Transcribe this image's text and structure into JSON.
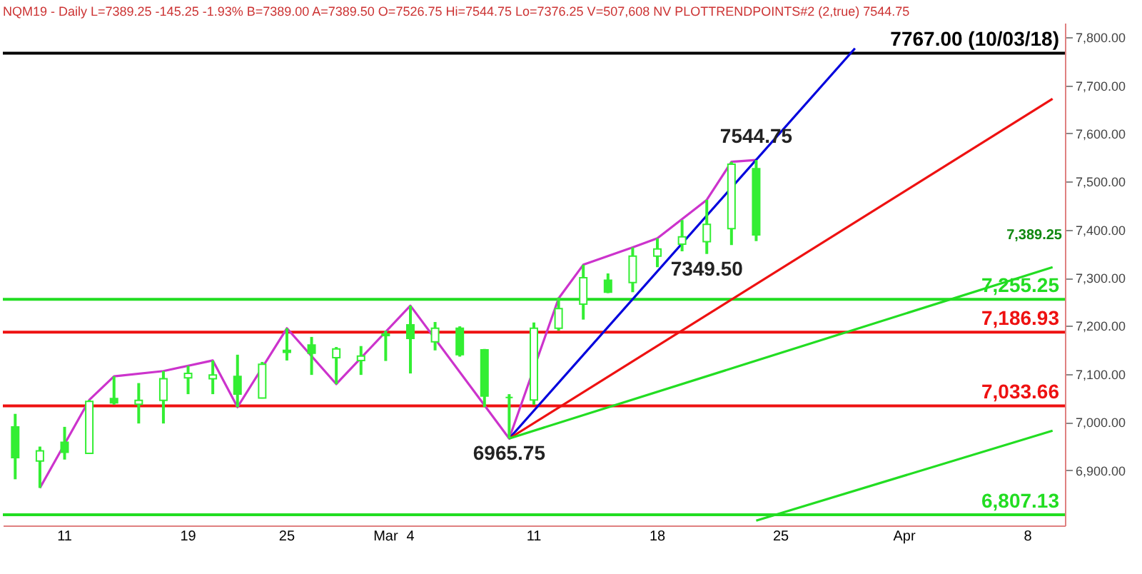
{
  "chart_data": {
    "type": "candlestick",
    "title": "NQM19 - Daily L=7389.25 -145.25 -1.93% B=7389.00 A=7389.50 O=7526.75 Hi=7544.75 Lo=7376.25 V=507,608 NV PLOTTRENDPOINTS#2 (2,true) 7544.75",
    "categories": [
      null,
      null,
      "11",
      null,
      null,
      null,
      null,
      "19",
      null,
      null,
      null,
      "25",
      null,
      null,
      null,
      "Mar",
      "4",
      null,
      null,
      null,
      null,
      "11",
      null,
      null,
      null,
      null,
      "18",
      null,
      null,
      null,
      null,
      "25",
      null,
      null,
      null,
      null,
      "Apr",
      null,
      null,
      null,
      null,
      "8",
      null
    ],
    "color": "#33ee33",
    "ohlc": [
      [
        6990,
        7017,
        6881,
        6926
      ],
      [
        6919,
        6949,
        6863,
        6940
      ],
      [
        6958,
        6990,
        6922,
        6937
      ],
      [
        6935,
        7046,
        6935,
        7043
      ],
      [
        7049,
        7095,
        7036,
        7040
      ],
      [
        7037,
        7081,
        6997,
        7045
      ],
      [
        7045,
        7106,
        6997,
        7090
      ],
      [
        7092,
        7117,
        7058,
        7101
      ],
      [
        7090,
        7128,
        7058,
        7098
      ],
      [
        7095,
        7140,
        7031,
        7058
      ],
      [
        7050,
        7125,
        7049,
        7120
      ],
      [
        7149,
        7195,
        7128,
        7145
      ],
      [
        7160,
        7177,
        7098,
        7143
      ],
      [
        7134,
        7156,
        7079,
        7152
      ],
      [
        7128,
        7158,
        7098,
        7137
      ],
      [
        7183,
        7190,
        7127,
        7180
      ],
      [
        7202,
        7242,
        7101,
        7174
      ],
      [
        7167,
        7208,
        7149,
        7195
      ],
      [
        7195,
        7199,
        7136,
        7140
      ],
      [
        7150,
        7152,
        7031,
        7054
      ],
      [
        7051,
        7058,
        6965.75,
        7051
      ],
      [
        7046,
        7207,
        7036,
        7195
      ],
      [
        7195,
        7259,
        7190,
        7236
      ],
      [
        7245,
        7327,
        7213,
        7300
      ],
      [
        7295,
        7309,
        7268,
        7270
      ],
      [
        7290,
        7363,
        7270,
        7345
      ],
      [
        7345,
        7382,
        7322,
        7360
      ],
      [
        7370,
        7420,
        7355,
        7385
      ],
      [
        7375,
        7462,
        7349.5,
        7411
      ],
      [
        7402,
        7541,
        7368,
        7536
      ],
      [
        7526.75,
        7544.75,
        7376.25,
        7389.25
      ],
      null,
      null,
      null,
      null,
      null,
      null,
      null,
      null,
      null,
      null,
      null,
      null
    ],
    "series": [
      {
        "type": "line",
        "color": "#cc33cc",
        "values": [
          null,
          6863,
          null,
          7046,
          7095,
          null,
          7106,
          null,
          7128,
          7031,
          null,
          7195,
          null,
          7079,
          null,
          null,
          7242,
          null,
          null,
          null,
          6965.75,
          null,
          7257,
          7327,
          null,
          7363,
          7382,
          null,
          7462,
          7541,
          7544.75,
          null,
          null,
          null,
          null,
          null,
          null,
          null,
          null,
          null,
          null,
          null,
          null
        ]
      },
      {
        "type": "line",
        "color": "#0000dd",
        "values": [
          null,
          null,
          null,
          null,
          null,
          null,
          null,
          null,
          null,
          null,
          null,
          null,
          null,
          null,
          null,
          null,
          null,
          null,
          null,
          null,
          6965.75,
          null,
          null,
          null,
          null,
          null,
          null,
          null,
          null,
          null,
          null,
          null,
          null,
          null,
          7777,
          null,
          null,
          null,
          null,
          null,
          null,
          null,
          null
        ]
      },
      {
        "type": "line",
        "color": "#ee1111",
        "values": [
          null,
          null,
          null,
          null,
          null,
          null,
          null,
          null,
          null,
          null,
          null,
          null,
          null,
          null,
          null,
          null,
          null,
          null,
          null,
          null,
          6965.75,
          null,
          null,
          null,
          null,
          null,
          null,
          null,
          null,
          null,
          null,
          null,
          null,
          null,
          null,
          null,
          null,
          null,
          null,
          null,
          null,
          null,
          7672
        ]
      },
      {
        "type": "line",
        "color": "#22dd22",
        "values": [
          null,
          null,
          null,
          null,
          null,
          null,
          null,
          null,
          null,
          null,
          null,
          null,
          null,
          null,
          null,
          null,
          null,
          null,
          null,
          null,
          6965.75,
          null,
          null,
          null,
          null,
          null,
          null,
          null,
          null,
          null,
          null,
          null,
          null,
          null,
          null,
          null,
          null,
          null,
          null,
          null,
          null,
          null,
          7322
        ]
      },
      {
        "type": "line",
        "color": "#22dd22",
        "values": [
          null,
          null,
          null,
          null,
          null,
          null,
          null,
          null,
          null,
          null,
          null,
          null,
          null,
          null,
          null,
          null,
          null,
          null,
          null,
          null,
          null,
          null,
          null,
          null,
          null,
          null,
          null,
          null,
          null,
          null,
          6795,
          null,
          null,
          null,
          null,
          null,
          null,
          null,
          null,
          null,
          null,
          null,
          6982
        ]
      }
    ],
    "ylim": [
      6785,
      7830
    ],
    "yticks": [
      {
        "value": 6900,
        "label": "6,900.00"
      },
      {
        "value": 7000,
        "label": "7,000.00"
      },
      {
        "value": 7100,
        "label": "7,100.00"
      },
      {
        "value": 7200,
        "label": "7,200.00"
      },
      {
        "value": 7300,
        "label": "7,300.00"
      },
      {
        "value": 7400,
        "label": "7,400.00"
      },
      {
        "value": 7500,
        "label": "7,500.00"
      },
      {
        "value": 7600,
        "label": "7,600.00"
      },
      {
        "value": 7700,
        "label": "7,700.00"
      },
      {
        "value": 7800,
        "label": "7,800.00"
      }
    ],
    "ref_lines": [
      {
        "axis": "y",
        "value": 7767,
        "label": "7767.00 (10/03/18)",
        "color": "#000000"
      },
      {
        "axis": "y",
        "value": 7255.25,
        "label": "7,255.25",
        "color": "#22dd22"
      },
      {
        "axis": "y",
        "value": 7186.93,
        "label": "7,186.93",
        "color": "#ee1111"
      },
      {
        "axis": "y",
        "value": 7033.66,
        "label": "7,033.66",
        "color": "#ee1111"
      },
      {
        "axis": "y",
        "value": 6807.13,
        "label": "6,807.13",
        "color": "#22dd22"
      }
    ],
    "annotations": [
      {
        "text": "6965.75",
        "y": 6965.75
      },
      {
        "text": "7349.50",
        "y": 7349.5
      },
      {
        "text": "7544.75",
        "y": 7544.75
      },
      "7,389.25"
    ]
  }
}
